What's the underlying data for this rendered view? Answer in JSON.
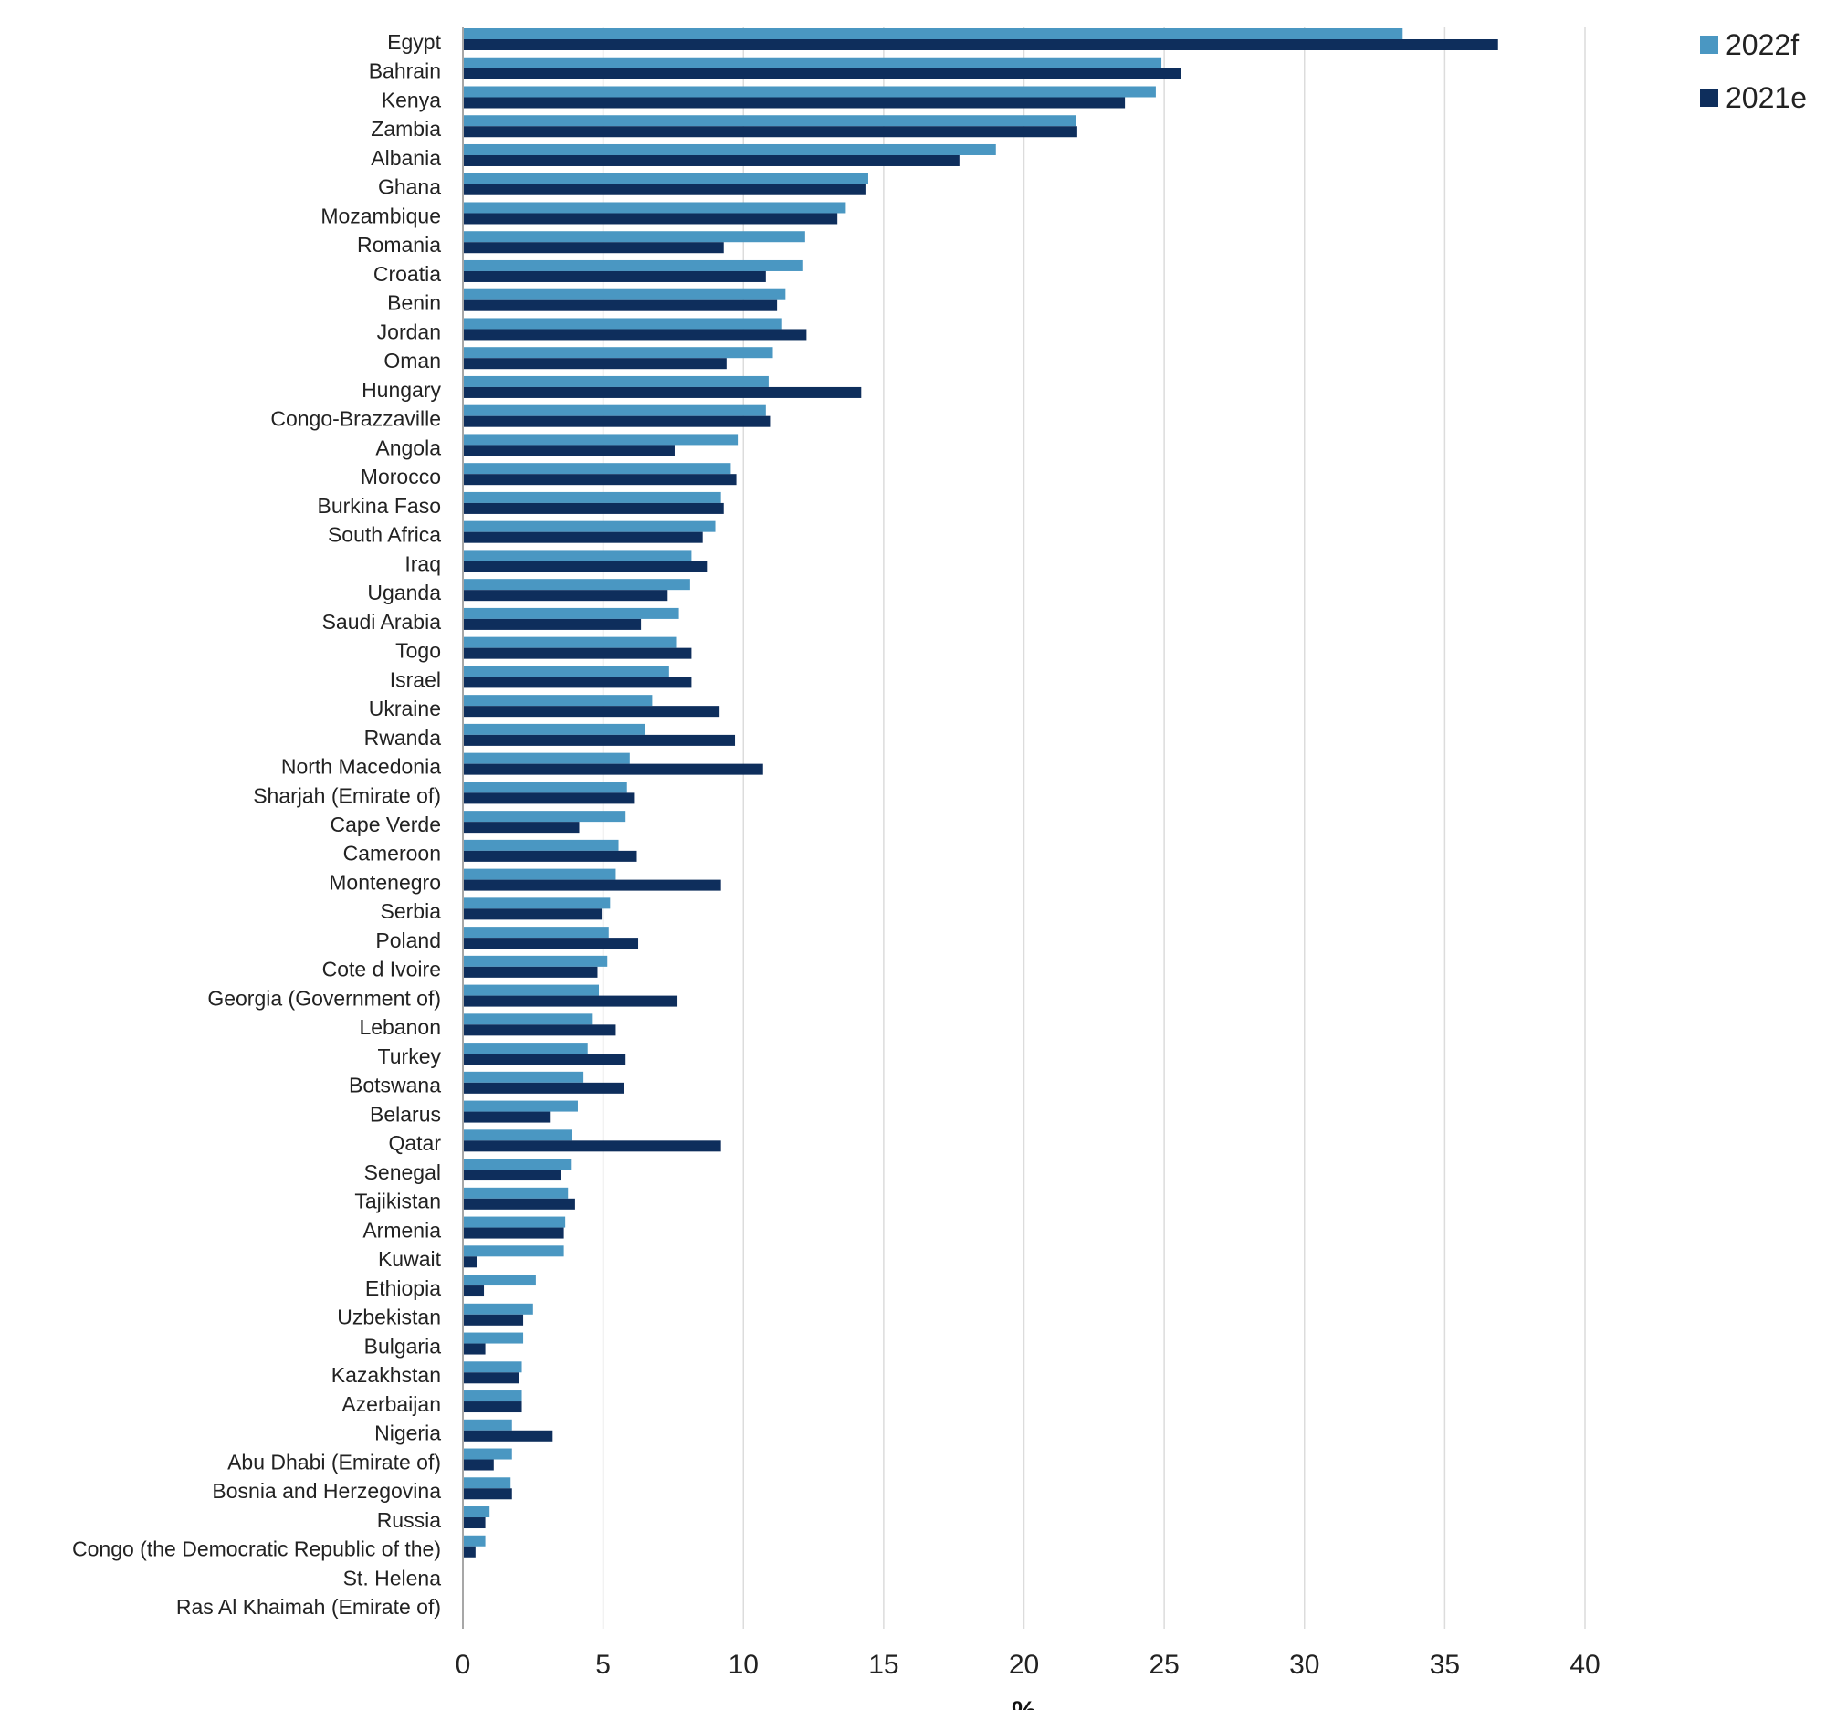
{
  "chart_data": {
    "type": "bar",
    "orientation": "horizontal",
    "title": "",
    "xlabel": "%",
    "ylabel": "",
    "xlim": [
      0,
      40
    ],
    "xticks": [
      0,
      5,
      10,
      15,
      20,
      25,
      30,
      35,
      40
    ],
    "grid": "vertical",
    "legend_position": "top-right",
    "categories": [
      "Egypt",
      "Bahrain",
      "Kenya",
      "Zambia",
      "Albania",
      "Ghana",
      "Mozambique",
      "Romania",
      "Croatia",
      "Benin",
      "Jordan",
      "Oman",
      "Hungary",
      "Congo-Brazzaville",
      "Angola",
      "Morocco",
      "Burkina Faso",
      "South Africa",
      "Iraq",
      "Uganda",
      "Saudi Arabia",
      "Togo",
      "Israel",
      "Ukraine",
      "Rwanda",
      "North Macedonia",
      "Sharjah (Emirate of)",
      "Cape Verde",
      "Cameroon",
      "Montenegro",
      "Serbia",
      "Poland",
      "Cote d Ivoire",
      "Georgia (Government of)",
      "Lebanon",
      "Turkey",
      "Botswana",
      "Belarus",
      "Qatar",
      "Senegal",
      "Tajikistan",
      "Armenia",
      "Kuwait",
      "Ethiopia",
      "Uzbekistan",
      "Bulgaria",
      "Kazakhstan",
      "Azerbaijan",
      "Nigeria",
      "Abu Dhabi (Emirate of)",
      "Bosnia and Herzegovina",
      "Russia",
      "Congo (the Democratic Republic of the)",
      "St. Helena",
      "Ras Al Khaimah (Emirate of)"
    ],
    "series": [
      {
        "name": "2022f",
        "color": "#4a97c2",
        "values": [
          33.5,
          24.9,
          24.7,
          21.85,
          19.0,
          14.45,
          13.65,
          12.2,
          12.1,
          11.5,
          11.35,
          11.05,
          10.9,
          10.8,
          9.8,
          9.55,
          9.2,
          9.0,
          8.15,
          8.1,
          7.7,
          7.6,
          7.35,
          6.75,
          6.5,
          5.95,
          5.85,
          5.8,
          5.55,
          5.45,
          5.25,
          5.2,
          5.15,
          4.85,
          4.6,
          4.45,
          4.3,
          4.1,
          3.9,
          3.85,
          3.75,
          3.65,
          3.6,
          2.6,
          2.5,
          2.15,
          2.1,
          2.1,
          1.75,
          1.75,
          1.7,
          0.95,
          0.8,
          0,
          0
        ]
      },
      {
        "name": "2021e",
        "color": "#0e2e5c",
        "values": [
          36.9,
          25.6,
          23.6,
          21.9,
          17.7,
          14.35,
          13.35,
          9.3,
          10.8,
          11.2,
          12.25,
          9.4,
          14.2,
          10.95,
          7.55,
          9.75,
          9.3,
          8.55,
          8.7,
          7.3,
          6.35,
          8.15,
          8.15,
          9.15,
          9.7,
          10.7,
          6.1,
          4.15,
          6.2,
          9.2,
          4.95,
          6.25,
          4.8,
          7.65,
          5.45,
          5.8,
          5.75,
          3.1,
          9.2,
          3.5,
          4.0,
          3.6,
          0.5,
          0.75,
          2.15,
          0.8,
          2.0,
          2.1,
          3.2,
          1.1,
          1.75,
          0.8,
          0.45,
          0,
          0
        ]
      }
    ]
  }
}
